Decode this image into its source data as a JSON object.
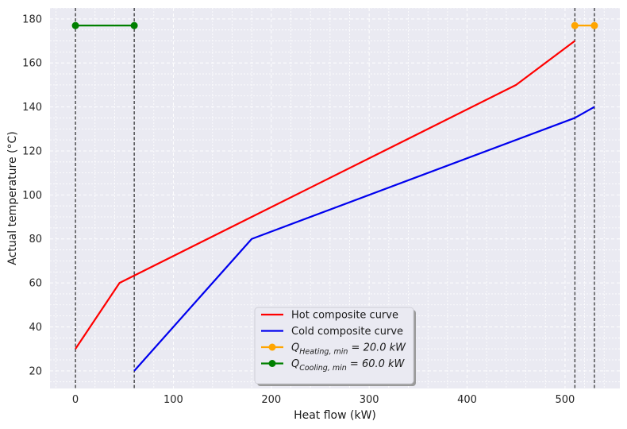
{
  "chart_data": {
    "type": "line",
    "title": "",
    "xlabel": "Heat flow (kW)",
    "ylabel": "Actual temperature (°C)",
    "xlim": [
      -26,
      556
    ],
    "ylim": [
      12,
      185
    ],
    "xticks": [
      0,
      100,
      200,
      300,
      400,
      500
    ],
    "yticks": [
      20,
      40,
      60,
      80,
      100,
      120,
      140,
      160,
      180
    ],
    "grid": true,
    "legend_position": "bottom-center",
    "series": [
      {
        "name": "Hot composite curve",
        "color": "#ff0000",
        "marker": false,
        "x": [
          0,
          45,
          450,
          510
        ],
        "y": [
          30,
          60,
          150,
          170
        ]
      },
      {
        "name": "Cold composite curve",
        "color": "#0000ee",
        "marker": false,
        "x": [
          60,
          180,
          510,
          530
        ],
        "y": [
          20,
          80,
          135,
          140
        ]
      },
      {
        "name_main": "Q",
        "name_sub": "Heating, min",
        "name_tail": " = 20.0 kW",
        "color": "#ffa500",
        "marker": true,
        "x": [
          510,
          530
        ],
        "y": [
          177,
          177
        ]
      },
      {
        "name_main": "Q",
        "name_sub": "Cooling, min",
        "name_tail": " = 60.0 kW",
        "color": "#008000",
        "marker": true,
        "x": [
          0,
          60
        ],
        "y": [
          177,
          177
        ]
      }
    ],
    "vlines": [
      0,
      60,
      510,
      530
    ]
  }
}
